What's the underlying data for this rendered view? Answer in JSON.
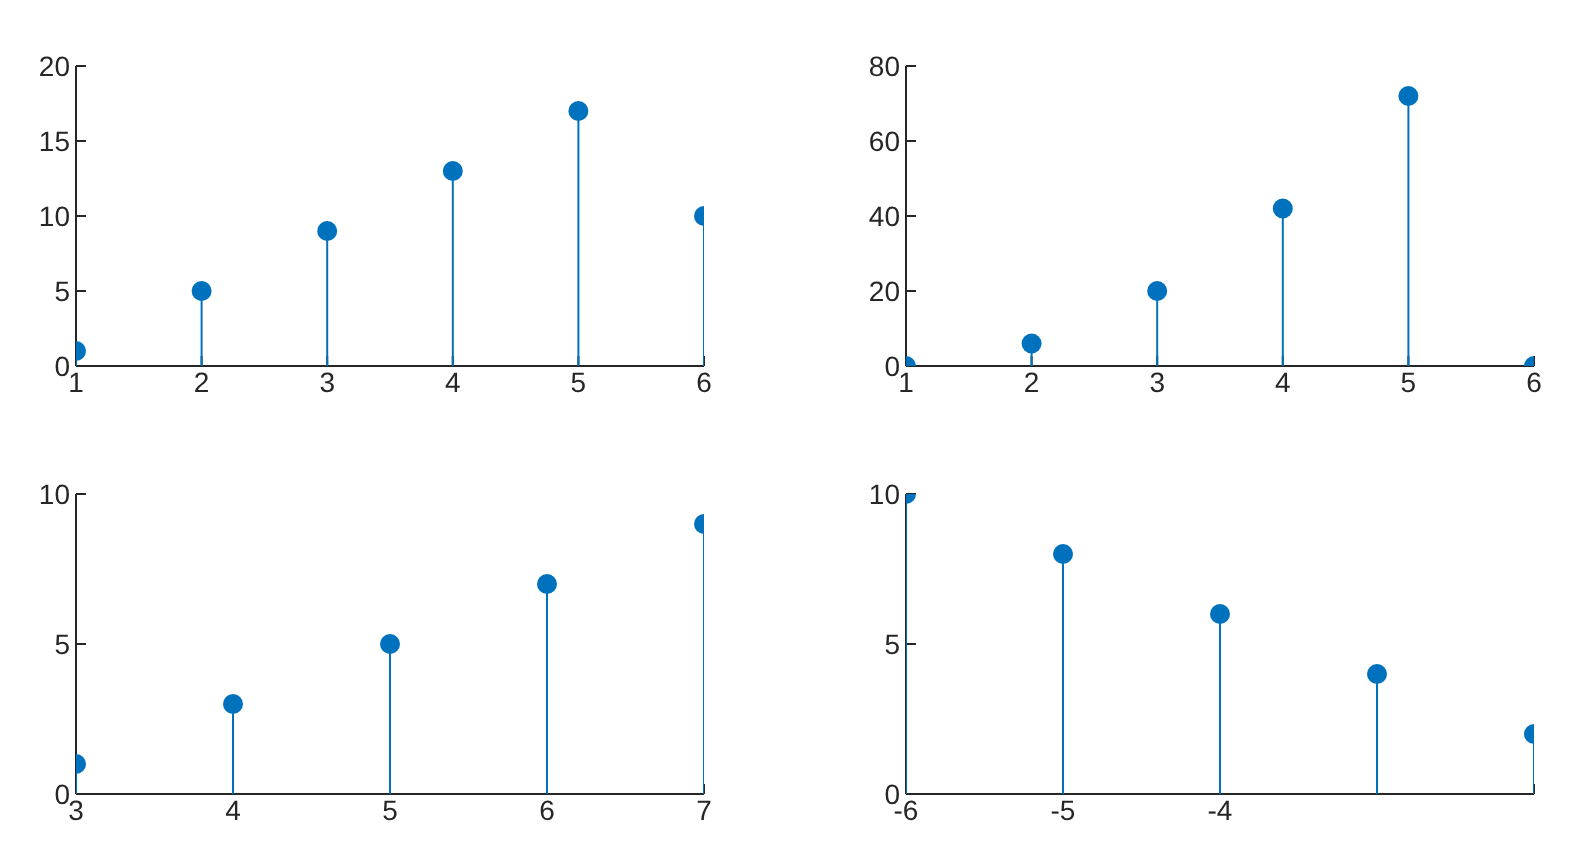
{
  "chart_data": [
    {
      "type": "lollipop",
      "x": [
        1,
        2,
        3,
        4,
        5,
        6
      ],
      "values": [
        1,
        5,
        9,
        13,
        17,
        10
      ],
      "color": "#0072bd",
      "xlim": [
        1,
        6
      ],
      "xticks": [
        1,
        2,
        3,
        4,
        5,
        6
      ],
      "ylim": [
        0,
        20
      ],
      "yticks": [
        0,
        5,
        10,
        15,
        20
      ],
      "marker": "circle",
      "grid": false,
      "legend": false
    },
    {
      "type": "lollipop",
      "x": [
        1,
        2,
        3,
        4,
        5,
        6
      ],
      "values": [
        0,
        6,
        20,
        42,
        72,
        0
      ],
      "color": "#0072bd",
      "xlim": [
        1,
        6
      ],
      "xticks": [
        1,
        2,
        3,
        4,
        5,
        6
      ],
      "ylim": [
        0,
        80
      ],
      "yticks": [
        0,
        20,
        40,
        60,
        80
      ],
      "marker": "circle",
      "grid": false,
      "legend": false
    },
    {
      "type": "lollipop",
      "x": [
        3,
        4,
        5,
        6,
        7
      ],
      "values": [
        1,
        3,
        5,
        7,
        9
      ],
      "color": "#0072bd",
      "xlim": [
        3,
        7
      ],
      "xticks": [
        3,
        4,
        5,
        6,
        7
      ],
      "ylim": [
        0,
        10
      ],
      "yticks": [
        0,
        5,
        10
      ],
      "marker": "circle",
      "grid": false,
      "legend": false
    },
    {
      "type": "lollipop",
      "x": [
        -6,
        -5,
        -4,
        -3,
        -2
      ],
      "values": [
        10,
        8,
        6,
        4,
        2
      ],
      "color": "#0072bd",
      "xlim": [
        -6,
        -2
      ],
      "xticks": [
        -6,
        -5,
        -4,
        {
          "value": -3,
          "label": null
        },
        {
          "value": -2,
          "label": null
        }
      ],
      "ylim": [
        0,
        10
      ],
      "yticks": [
        0,
        5,
        10
      ],
      "marker": "circle",
      "grid": false,
      "legend": false
    }
  ]
}
